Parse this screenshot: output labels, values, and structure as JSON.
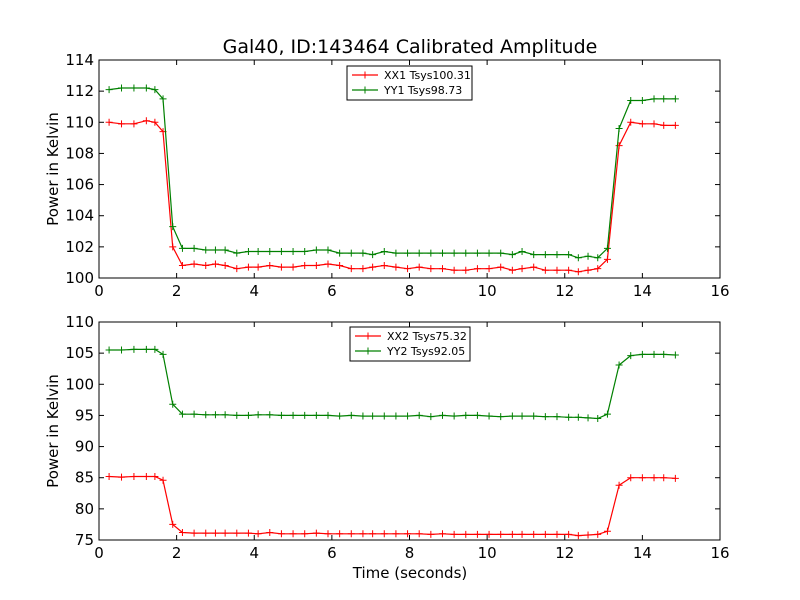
{
  "figure": {
    "title": "Gal40, ID:143464 Calibrated Amplitude",
    "xlabel": "Time (seconds)"
  },
  "chart_data": [
    {
      "type": "line",
      "ylabel": "Power in Kelvin",
      "xlim": [
        0,
        16
      ],
      "ylim": [
        100,
        114
      ],
      "xticks": [
        0,
        2,
        4,
        6,
        8,
        10,
        12,
        14,
        16
      ],
      "yticks": [
        100,
        102,
        104,
        106,
        108,
        110,
        112,
        114
      ],
      "legend_placement": "top-center",
      "grid": false,
      "x": [
        0.26,
        0.58,
        0.9,
        1.22,
        1.44,
        1.65,
        1.9,
        2.15,
        2.45,
        2.75,
        3.0,
        3.25,
        3.55,
        3.85,
        4.1,
        4.4,
        4.7,
        5.0,
        5.3,
        5.6,
        5.9,
        6.2,
        6.5,
        6.8,
        7.05,
        7.35,
        7.65,
        7.95,
        8.25,
        8.55,
        8.85,
        9.15,
        9.45,
        9.75,
        10.05,
        10.35,
        10.65,
        10.9,
        11.2,
        11.5,
        11.8,
        12.1,
        12.35,
        12.6,
        12.85,
        13.1,
        13.4,
        13.7,
        14.0,
        14.3,
        14.55,
        14.85
      ],
      "series": [
        {
          "name": "XX1 Tsys100.31",
          "color": "#ff0000",
          "values": [
            110.0,
            109.9,
            109.9,
            110.1,
            110.0,
            109.4,
            102.0,
            100.8,
            100.9,
            100.8,
            100.9,
            100.8,
            100.6,
            100.7,
            100.7,
            100.8,
            100.7,
            100.7,
            100.8,
            100.8,
            100.9,
            100.8,
            100.6,
            100.6,
            100.7,
            100.8,
            100.7,
            100.6,
            100.7,
            100.6,
            100.6,
            100.5,
            100.5,
            100.6,
            100.6,
            100.7,
            100.5,
            100.6,
            100.7,
            100.5,
            100.5,
            100.5,
            100.4,
            100.5,
            100.6,
            101.2,
            108.5,
            110.0,
            109.9,
            109.9,
            109.8,
            109.8
          ]
        },
        {
          "name": "YY1 Tsys98.73",
          "color": "#008000",
          "values": [
            112.1,
            112.2,
            112.2,
            112.2,
            112.1,
            111.5,
            103.3,
            101.9,
            101.9,
            101.8,
            101.8,
            101.8,
            101.6,
            101.7,
            101.7,
            101.7,
            101.7,
            101.7,
            101.7,
            101.8,
            101.8,
            101.6,
            101.6,
            101.6,
            101.5,
            101.7,
            101.6,
            101.6,
            101.6,
            101.6,
            101.6,
            101.6,
            101.6,
            101.6,
            101.6,
            101.6,
            101.5,
            101.7,
            101.5,
            101.5,
            101.5,
            101.5,
            101.3,
            101.4,
            101.3,
            101.9,
            109.6,
            111.4,
            111.4,
            111.5,
            111.5,
            111.5
          ]
        }
      ]
    },
    {
      "type": "line",
      "ylabel": "Power in Kelvin",
      "xlim": [
        0,
        16
      ],
      "ylim": [
        75,
        110
      ],
      "xticks": [
        0,
        2,
        4,
        6,
        8,
        10,
        12,
        14,
        16
      ],
      "yticks": [
        75,
        80,
        85,
        90,
        95,
        100,
        105,
        110
      ],
      "legend_placement": "top-center",
      "grid": false,
      "x": [
        0.26,
        0.58,
        0.9,
        1.22,
        1.44,
        1.65,
        1.9,
        2.15,
        2.45,
        2.75,
        3.0,
        3.25,
        3.55,
        3.85,
        4.1,
        4.4,
        4.7,
        5.0,
        5.3,
        5.6,
        5.9,
        6.2,
        6.5,
        6.8,
        7.05,
        7.35,
        7.65,
        7.95,
        8.25,
        8.55,
        8.85,
        9.15,
        9.45,
        9.75,
        10.05,
        10.35,
        10.65,
        10.9,
        11.2,
        11.5,
        11.8,
        12.1,
        12.35,
        12.6,
        12.85,
        13.1,
        13.4,
        13.7,
        14.0,
        14.3,
        14.55,
        14.85
      ],
      "series": [
        {
          "name": "XX2 Tsys75.32",
          "color": "#ff0000",
          "values": [
            85.2,
            85.1,
            85.2,
            85.2,
            85.2,
            84.6,
            77.5,
            76.2,
            76.1,
            76.1,
            76.1,
            76.1,
            76.1,
            76.1,
            76.0,
            76.2,
            76.0,
            76.0,
            76.0,
            76.1,
            76.0,
            76.0,
            76.0,
            76.0,
            76.0,
            76.0,
            76.0,
            76.0,
            76.0,
            75.9,
            76.0,
            75.9,
            75.9,
            75.9,
            75.9,
            75.9,
            75.9,
            75.9,
            75.9,
            75.9,
            75.9,
            75.9,
            75.7,
            75.8,
            75.9,
            76.4,
            83.8,
            85.0,
            85.0,
            85.0,
            85.0,
            84.9
          ]
        },
        {
          "name": "YY2 Tsys92.05",
          "color": "#008000",
          "values": [
            105.5,
            105.5,
            105.6,
            105.6,
            105.6,
            104.8,
            96.8,
            95.2,
            95.2,
            95.1,
            95.1,
            95.1,
            95.0,
            95.0,
            95.1,
            95.1,
            95.0,
            95.0,
            95.0,
            95.0,
            95.0,
            94.9,
            95.0,
            94.9,
            94.9,
            94.9,
            94.9,
            94.9,
            95.0,
            94.8,
            95.0,
            94.9,
            95.0,
            95.0,
            94.9,
            94.8,
            94.9,
            94.9,
            94.9,
            94.8,
            94.8,
            94.7,
            94.7,
            94.6,
            94.5,
            95.2,
            103.1,
            104.6,
            104.8,
            104.8,
            104.8,
            104.7
          ]
        }
      ]
    }
  ]
}
